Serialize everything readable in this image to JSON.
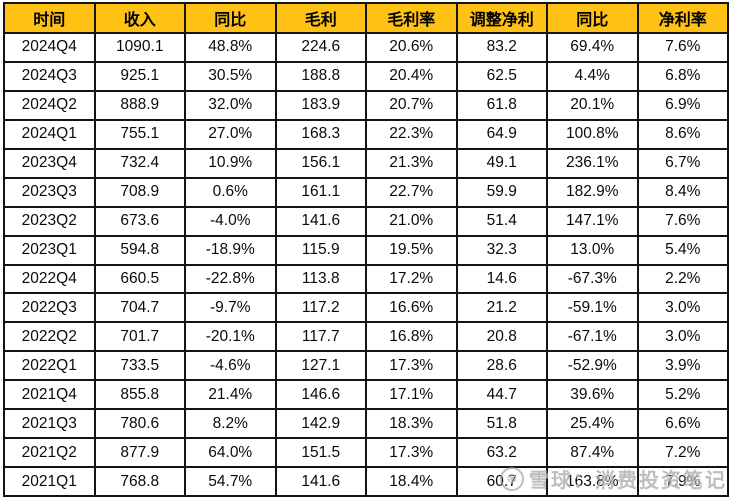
{
  "colors": {
    "header_bg": "#FFC113",
    "border": "#141414",
    "cell_bg": "#FFFFFF",
    "text": "#0A0A0A",
    "watermark": "#969696"
  },
  "watermark": {
    "logo_glyph": "❆",
    "text": "雪球：消费投资笔记"
  },
  "chart_data": {
    "type": "table",
    "title": "",
    "columns": [
      "时间",
      "收入",
      "同比",
      "毛利",
      "毛利率",
      "调整净利",
      "同比",
      "净利率"
    ],
    "column_keys": [
      "time",
      "revenue",
      "revenue-yoy",
      "gross-profit",
      "gross-margin",
      "adjusted-net-profit",
      "net-profit-yoy",
      "net-margin"
    ],
    "rows": [
      [
        "2024Q4",
        "1090.1",
        "48.8%",
        "224.6",
        "20.6%",
        "83.2",
        "69.4%",
        "7.6%"
      ],
      [
        "2024Q3",
        "925.1",
        "30.5%",
        "188.8",
        "20.4%",
        "62.5",
        "4.4%",
        "6.8%"
      ],
      [
        "2024Q2",
        "888.9",
        "32.0%",
        "183.9",
        "20.7%",
        "61.8",
        "20.1%",
        "6.9%"
      ],
      [
        "2024Q1",
        "755.1",
        "27.0%",
        "168.3",
        "22.3%",
        "64.9",
        "100.8%",
        "8.6%"
      ],
      [
        "2023Q4",
        "732.4",
        "10.9%",
        "156.1",
        "21.3%",
        "49.1",
        "236.1%",
        "6.7%"
      ],
      [
        "2023Q3",
        "708.9",
        "0.6%",
        "161.1",
        "22.7%",
        "59.9",
        "182.9%",
        "8.4%"
      ],
      [
        "2023Q2",
        "673.6",
        "-4.0%",
        "141.6",
        "21.0%",
        "51.4",
        "147.1%",
        "7.6%"
      ],
      [
        "2023Q1",
        "594.8",
        "-18.9%",
        "115.9",
        "19.5%",
        "32.3",
        "13.0%",
        "5.4%"
      ],
      [
        "2022Q4",
        "660.5",
        "-22.8%",
        "113.8",
        "17.2%",
        "14.6",
        "-67.3%",
        "2.2%"
      ],
      [
        "2022Q3",
        "704.7",
        "-9.7%",
        "117.2",
        "16.6%",
        "21.2",
        "-59.1%",
        "3.0%"
      ],
      [
        "2022Q2",
        "701.7",
        "-20.1%",
        "117.7",
        "16.8%",
        "20.8",
        "-67.1%",
        "3.0%"
      ],
      [
        "2022Q1",
        "733.5",
        "-4.6%",
        "127.1",
        "17.3%",
        "28.6",
        "-52.9%",
        "3.9%"
      ],
      [
        "2021Q4",
        "855.8",
        "21.4%",
        "146.6",
        "17.1%",
        "44.7",
        "39.6%",
        "5.2%"
      ],
      [
        "2021Q3",
        "780.6",
        "8.2%",
        "142.9",
        "18.3%",
        "51.8",
        "25.4%",
        "6.6%"
      ],
      [
        "2021Q2",
        "877.9",
        "64.0%",
        "151.5",
        "17.3%",
        "63.2",
        "87.4%",
        "7.2%"
      ],
      [
        "2021Q1",
        "768.8",
        "54.7%",
        "141.6",
        "18.4%",
        "60.7",
        "163.8%",
        "7.9%"
      ]
    ]
  }
}
